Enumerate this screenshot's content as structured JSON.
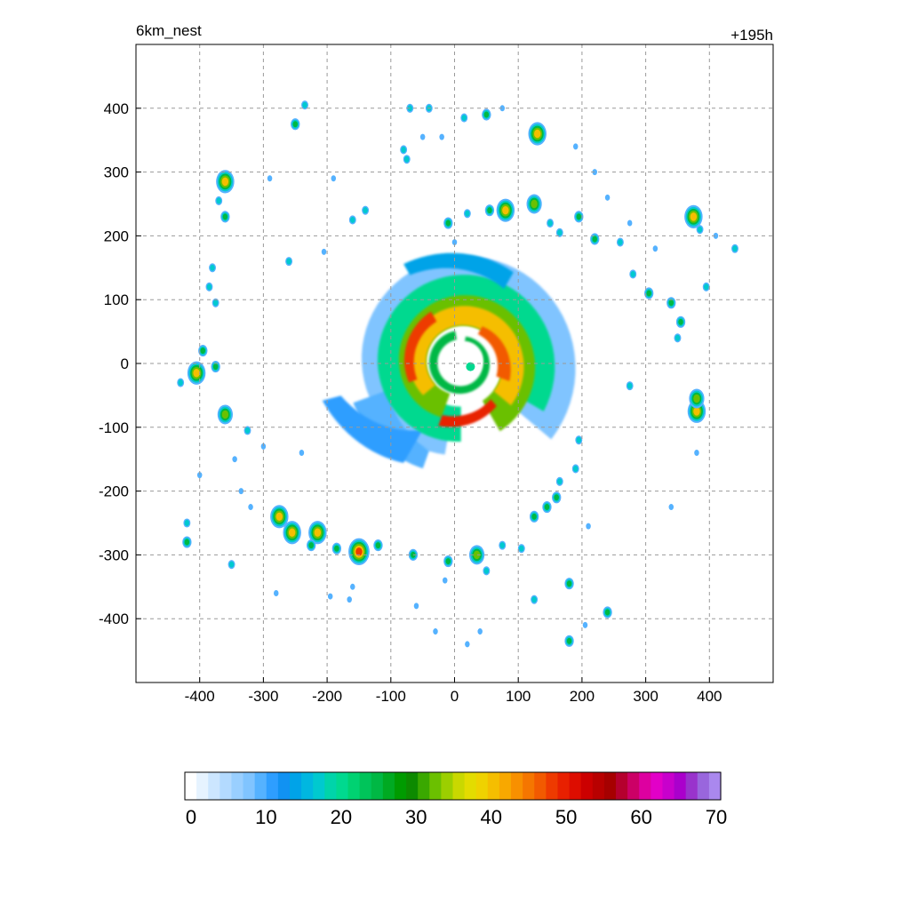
{
  "chart_data": {
    "type": "heatmap",
    "title_left": "6km_nest",
    "title_right": "+195h",
    "xlabel": "",
    "ylabel": "",
    "xlim": [
      -500,
      500
    ],
    "ylim": [
      -500,
      500
    ],
    "x_ticks": [
      -400,
      -300,
      -200,
      -100,
      0,
      100,
      200,
      300,
      400
    ],
    "y_ticks": [
      400,
      300,
      200,
      100,
      0,
      -100,
      -200,
      -300,
      -400
    ],
    "grid": true,
    "grid_style": "dashed",
    "colorbar": {
      "min": 0,
      "max": 70,
      "ticks": [
        0,
        10,
        20,
        30,
        40,
        50,
        60,
        70
      ],
      "colors": [
        "#ffffff",
        "#e6f3ff",
        "#cce6ff",
        "#b3daff",
        "#99cfff",
        "#80c4ff",
        "#55b2ff",
        "#2e9eff",
        "#1192f2",
        "#00a3e8",
        "#00b7e0",
        "#00c9cf",
        "#00d4aa",
        "#00d98f",
        "#00d272",
        "#00c45a",
        "#00b844",
        "#00aa22",
        "#009b00",
        "#0d8a00",
        "#3aa800",
        "#6bc000",
        "#9ccf00",
        "#c9d800",
        "#e3dc00",
        "#efd200",
        "#f5be00",
        "#f8a800",
        "#f89000",
        "#f57600",
        "#f25a00",
        "#ee3a00",
        "#e82000",
        "#dd0d00",
        "#cc0000",
        "#b80000",
        "#a60000",
        "#b5002e",
        "#cc0066",
        "#dd00a0",
        "#e200c8",
        "#c800cc",
        "#aa00cc",
        "#9933cc",
        "#9966dd",
        "#aa88ee"
      ]
    },
    "series": [
      {
        "kind": "core_field",
        "center": [
          10,
          0
        ],
        "description_levels": [
          5,
          15,
          22,
          30,
          40,
          50
        ]
      },
      {
        "kind": "convective_cells",
        "points": [
          [
            -360,
            285,
            45
          ],
          [
            -360,
            230,
            28
          ],
          [
            -370,
            255,
            20
          ],
          [
            -250,
            375,
            28
          ],
          [
            -235,
            405,
            18
          ],
          [
            -290,
            290,
            15
          ],
          [
            -260,
            160,
            22
          ],
          [
            -190,
            290,
            10
          ],
          [
            -160,
            225,
            22
          ],
          [
            -140,
            240,
            18
          ],
          [
            -80,
            335,
            20
          ],
          [
            -75,
            320,
            18
          ],
          [
            -40,
            400,
            20
          ],
          [
            -70,
            400,
            18
          ],
          [
            50,
            390,
            25
          ],
          [
            15,
            385,
            20
          ],
          [
            130,
            360,
            45
          ],
          [
            75,
            400,
            15
          ],
          [
            -20,
            355,
            12
          ],
          [
            -50,
            355,
            12
          ],
          [
            -380,
            150,
            22
          ],
          [
            -385,
            120,
            20
          ],
          [
            -375,
            95,
            22
          ],
          [
            -395,
            20,
            25
          ],
          [
            -405,
            -15,
            40
          ],
          [
            -375,
            -5,
            28
          ],
          [
            -430,
            -30,
            18
          ],
          [
            -360,
            -80,
            35
          ],
          [
            -325,
            -105,
            20
          ],
          [
            -345,
            -150,
            15
          ],
          [
            -335,
            -200,
            15
          ],
          [
            -320,
            -225,
            15
          ],
          [
            -270,
            -235,
            28
          ],
          [
            -275,
            -240,
            45
          ],
          [
            -255,
            -265,
            40
          ],
          [
            -215,
            -265,
            45
          ],
          [
            -225,
            -285,
            30
          ],
          [
            -185,
            -290,
            25
          ],
          [
            -150,
            -295,
            50
          ],
          [
            -120,
            -285,
            30
          ],
          [
            -65,
            -300,
            30
          ],
          [
            -10,
            -310,
            30
          ],
          [
            35,
            -300,
            35
          ],
          [
            50,
            -325,
            20
          ],
          [
            75,
            -285,
            22
          ],
          [
            105,
            -290,
            20
          ],
          [
            125,
            -240,
            30
          ],
          [
            145,
            -225,
            25
          ],
          [
            160,
            -210,
            30
          ],
          [
            165,
            -185,
            22
          ],
          [
            190,
            -165,
            18
          ],
          [
            195,
            -120,
            18
          ],
          [
            180,
            -345,
            30
          ],
          [
            125,
            -370,
            22
          ],
          [
            180,
            -435,
            25
          ],
          [
            205,
            -410,
            15
          ],
          [
            240,
            -390,
            28
          ],
          [
            -420,
            -280,
            25
          ],
          [
            -420,
            -250,
            18
          ],
          [
            -350,
            -315,
            18
          ],
          [
            -195,
            -365,
            15
          ],
          [
            -165,
            -370,
            15
          ],
          [
            -160,
            -350,
            12
          ],
          [
            380,
            -75,
            45
          ],
          [
            380,
            -55,
            35
          ],
          [
            275,
            -35,
            18
          ],
          [
            375,
            230,
            40
          ],
          [
            385,
            210,
            20
          ],
          [
            410,
            200,
            15
          ],
          [
            440,
            180,
            20
          ],
          [
            395,
            120,
            20
          ],
          [
            355,
            65,
            25
          ],
          [
            350,
            40,
            20
          ],
          [
            340,
            95,
            28
          ],
          [
            305,
            110,
            28
          ],
          [
            280,
            140,
            18
          ],
          [
            315,
            180,
            15
          ],
          [
            275,
            220,
            15
          ],
          [
            220,
            195,
            25
          ],
          [
            195,
            230,
            25
          ],
          [
            165,
            205,
            22
          ],
          [
            150,
            220,
            20
          ],
          [
            125,
            250,
            35
          ],
          [
            80,
            240,
            40
          ],
          [
            55,
            240,
            28
          ],
          [
            20,
            235,
            20
          ],
          [
            -10,
            220,
            25
          ],
          [
            260,
            190,
            22
          ],
          [
            240,
            260,
            15
          ],
          [
            190,
            340,
            10
          ],
          [
            -15,
            -340,
            12
          ],
          [
            -30,
            -420,
            15
          ],
          [
            20,
            -440,
            12
          ],
          [
            40,
            -420,
            12
          ],
          [
            210,
            -255,
            15
          ],
          [
            340,
            -225,
            15
          ],
          [
            380,
            -140,
            12
          ],
          [
            -300,
            -130,
            12
          ],
          [
            -280,
            -360,
            12
          ],
          [
            -400,
            -175,
            12
          ],
          [
            -240,
            -140,
            10
          ],
          [
            -60,
            -380,
            10
          ],
          [
            0,
            190,
            10
          ],
          [
            -205,
            175,
            10
          ],
          [
            220,
            300,
            10
          ]
        ]
      }
    ]
  }
}
